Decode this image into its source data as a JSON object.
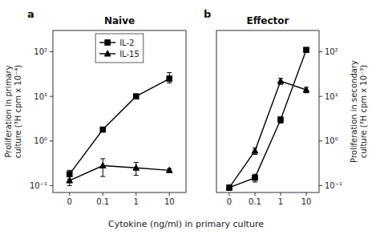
{
  "chart_data": [
    {
      "type": "line",
      "title": "Naive",
      "annotations": [
        "a"
      ],
      "categories": [
        "0",
        "0.1",
        "1",
        "10"
      ],
      "xlabel": "Cytokine (ng/ml) in primary culture",
      "ylabel": "Proliferation in primary\nculture (³H cpm x 10⁻⁴)",
      "log": "y",
      "ylim": [
        0.07,
        300
      ],
      "yticks": [
        {
          "value": 0.1,
          "label": "10⁻¹"
        },
        {
          "value": 1,
          "label": "10⁰"
        },
        {
          "value": 10,
          "label": "10¹"
        },
        {
          "value": 100,
          "label": "10²"
        }
      ],
      "legend": "upper center",
      "series": [
        {
          "name": "IL-2",
          "color": "black",
          "marker": "square",
          "line_style": "solid",
          "values": [
            0.18,
            1.8,
            10.0,
            25.0
          ],
          "yerr_low": [
            0.04,
            0.0,
            0.0,
            5.0
          ],
          "yerr_high": [
            0.04,
            0.0,
            0.0,
            9.0
          ]
        },
        {
          "name": "IL-15",
          "color": "black",
          "marker": "triangle",
          "line_style": "solid",
          "values": [
            0.13,
            0.28,
            0.25,
            0.22
          ],
          "yerr_low": [
            0.03,
            0.12,
            0.08,
            0.02
          ],
          "yerr_high": [
            0.03,
            0.12,
            0.08,
            0.02
          ]
        }
      ]
    },
    {
      "type": "line",
      "title": "Effector",
      "annotations": [
        "b"
      ],
      "categories": [
        "0",
        "0.1",
        "1",
        "10"
      ],
      "y2label": "Proliferation in secondary\nculture (³H cpm x 10⁻³)",
      "log": "y",
      "y2lim": [
        0.07,
        300
      ],
      "y2ticks": [
        {
          "value": 0.1,
          "label": "10⁻¹"
        },
        {
          "value": 1,
          "label": "10⁰"
        },
        {
          "value": 10,
          "label": "10¹"
        },
        {
          "value": 100,
          "label": "10²"
        }
      ],
      "series": [
        {
          "axis": "y2",
          "color": "black",
          "marker": "square",
          "line_style": "solid",
          "values": [
            0.09,
            0.15,
            3.0,
            110.0
          ],
          "yerr_low": [
            0.01,
            0.03,
            0.5,
            0.0
          ],
          "yerr_high": [
            0.01,
            0.03,
            0.5,
            0.0
          ]
        },
        {
          "axis": "y2",
          "color": "black",
          "marker": "triangle",
          "line_style": "solid",
          "values": [
            0.09,
            0.6,
            22.0,
            14.0
          ],
          "yerr_low": [
            0.01,
            0.1,
            3.5,
            2.0
          ],
          "yerr_high": [
            0.01,
            0.1,
            3.5,
            2.0
          ]
        }
      ]
    }
  ]
}
